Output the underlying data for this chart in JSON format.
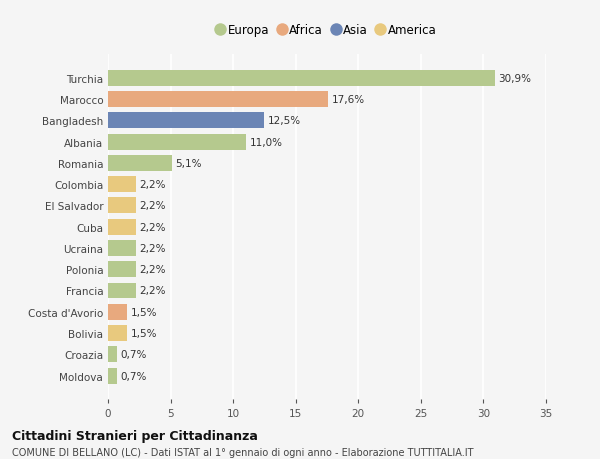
{
  "categories": [
    "Turchia",
    "Marocco",
    "Bangladesh",
    "Albania",
    "Romania",
    "Colombia",
    "El Salvador",
    "Cuba",
    "Ucraina",
    "Polonia",
    "Francia",
    "Costa d'Avorio",
    "Bolivia",
    "Croazia",
    "Moldova"
  ],
  "values": [
    30.9,
    17.6,
    12.5,
    11.0,
    5.1,
    2.2,
    2.2,
    2.2,
    2.2,
    2.2,
    2.2,
    1.5,
    1.5,
    0.7,
    0.7
  ],
  "labels": [
    "30,9%",
    "17,6%",
    "12,5%",
    "11,0%",
    "5,1%",
    "2,2%",
    "2,2%",
    "2,2%",
    "2,2%",
    "2,2%",
    "2,2%",
    "1,5%",
    "1,5%",
    "0,7%",
    "0,7%"
  ],
  "colors": [
    "#b5c98e",
    "#e8a97e",
    "#6b85b5",
    "#b5c98e",
    "#b5c98e",
    "#e8c97e",
    "#e8c97e",
    "#e8c97e",
    "#b5c98e",
    "#b5c98e",
    "#b5c98e",
    "#e8a97e",
    "#e8c97e",
    "#b5c98e",
    "#b5c98e"
  ],
  "legend": [
    {
      "label": "Europa",
      "color": "#b5c98e"
    },
    {
      "label": "Africa",
      "color": "#e8a97e"
    },
    {
      "label": "Asia",
      "color": "#6b85b5"
    },
    {
      "label": "America",
      "color": "#e8c97e"
    }
  ],
  "xlim": [
    0,
    35
  ],
  "xticks": [
    0,
    5,
    10,
    15,
    20,
    25,
    30,
    35
  ],
  "title": "Cittadini Stranieri per Cittadinanza",
  "subtitle": "COMUNE DI BELLANO (LC) - Dati ISTAT al 1° gennaio di ogni anno - Elaborazione TUTTITALIA.IT",
  "background_color": "#f5f5f5",
  "grid_color": "#ffffff",
  "bar_height": 0.75
}
